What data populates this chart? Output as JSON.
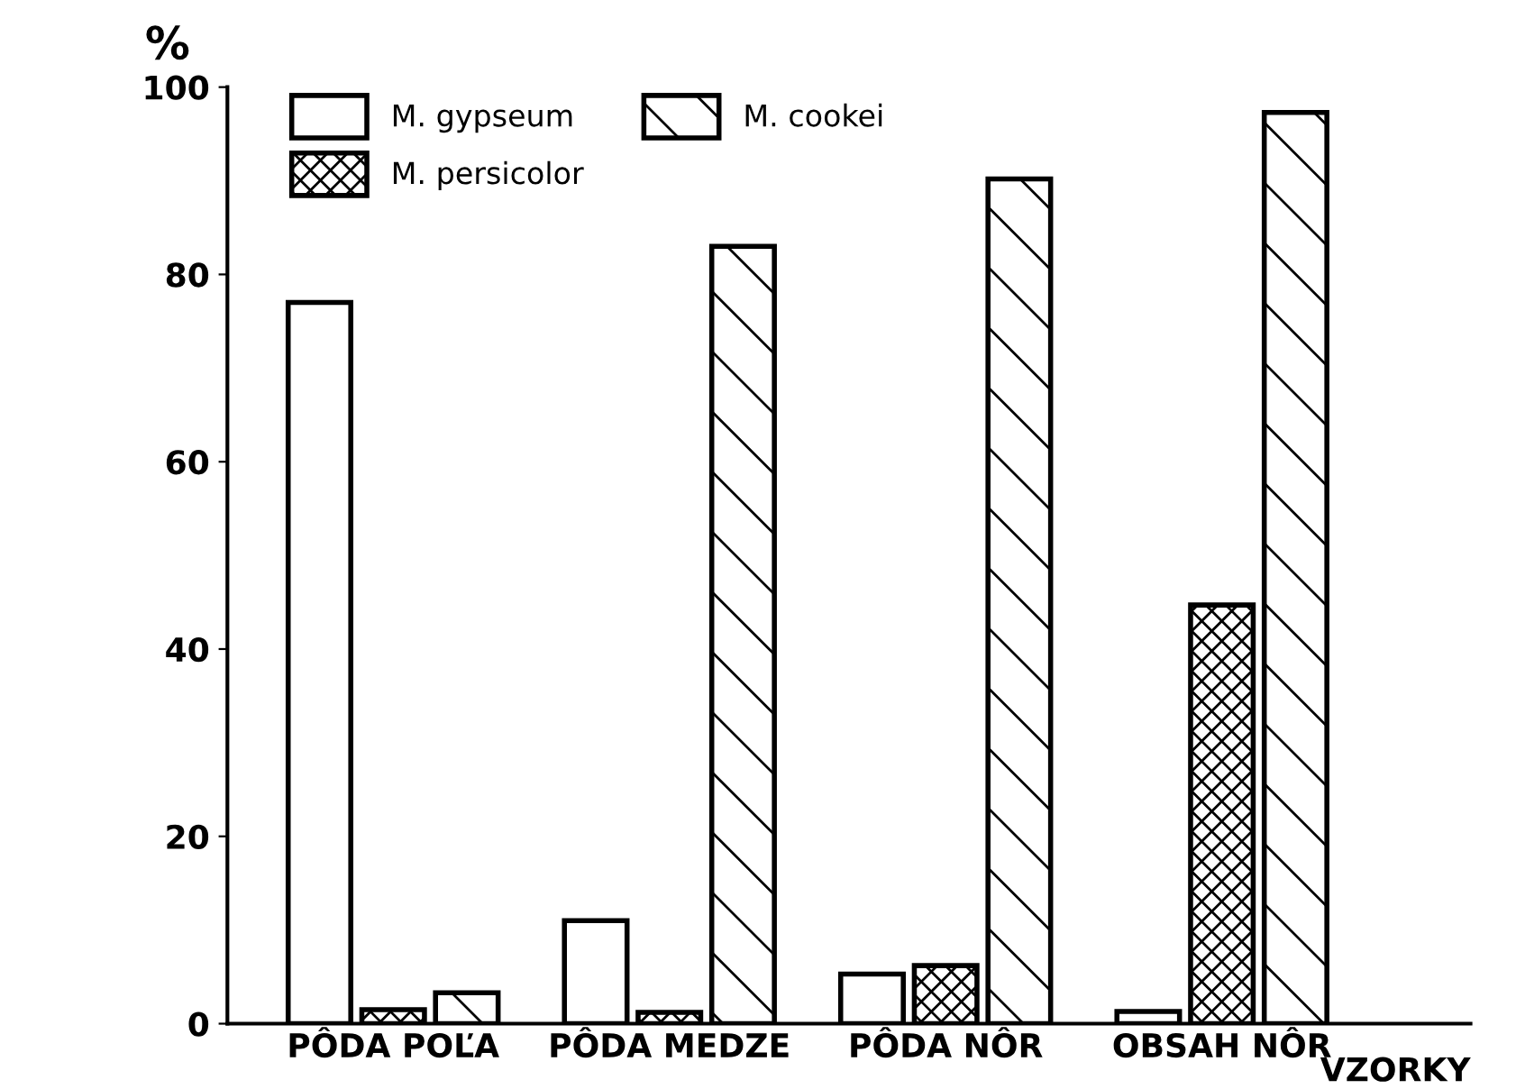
{
  "chart_data": {
    "type": "bar",
    "ylabel": "%",
    "xlabel": "VZORKY",
    "categories": [
      "PÔDA POĽA",
      "PÔDA MEDZE",
      "PÔDA NÔR",
      "OBSAH NÔR"
    ],
    "series": [
      {
        "name": "M. gypseum",
        "color": "#ffffff",
        "values": [
          77,
          11,
          5.3,
          1.3
        ]
      },
      {
        "name": "M. persicolor",
        "color": "#000000",
        "values": [
          1.5,
          1.2,
          6.2,
          44.7
        ]
      },
      {
        "name": "M. cookei",
        "color": "#000000",
        "values": [
          3.3,
          83,
          90.2,
          97.3
        ]
      }
    ],
    "ylim": [
      0,
      100
    ],
    "yticks": [
      0,
      20,
      40,
      60,
      80,
      100
    ],
    "grid": false,
    "legend": "top left"
  }
}
